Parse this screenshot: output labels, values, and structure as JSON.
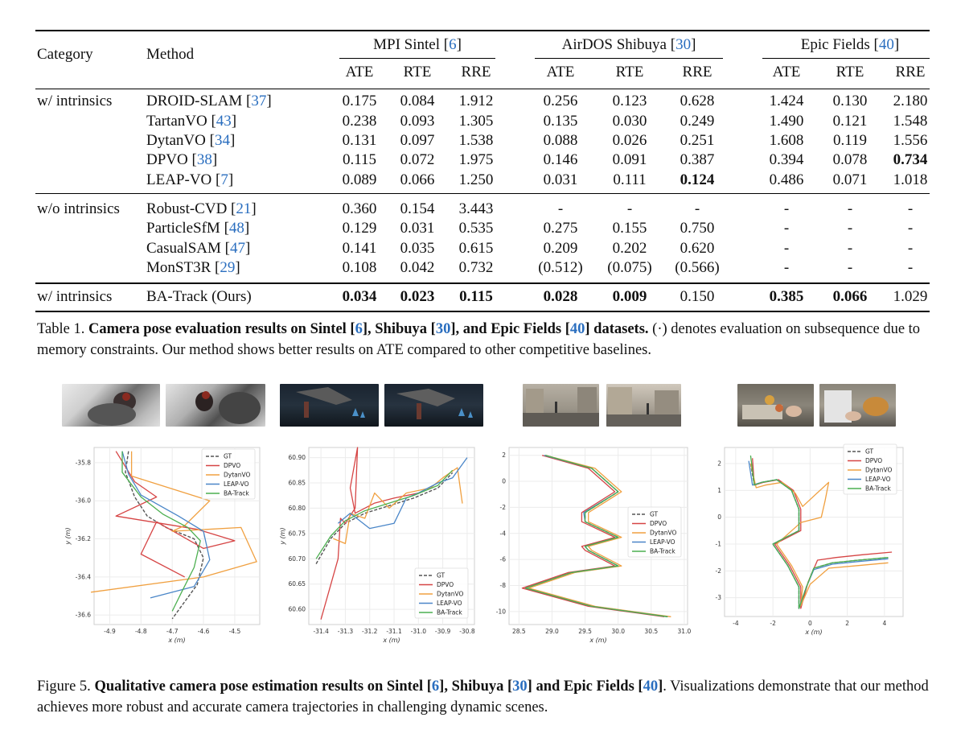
{
  "table": {
    "header": {
      "category": "Category",
      "method": "Method",
      "groups": [
        {
          "name": "MPI Sintel [",
          "ref": "6",
          "end": "]"
        },
        {
          "name": "AirDOS Shibuya [",
          "ref": "30",
          "end": "]"
        },
        {
          "name": "Epic Fields [",
          "ref": "40",
          "end": "]"
        }
      ],
      "metrics": [
        "ATE",
        "RTE",
        "RRE",
        "ATE",
        "RTE",
        "RRE",
        "ATE",
        "RTE",
        "RRE"
      ]
    },
    "rows": [
      {
        "category": "w/ intrinsics",
        "method": "DROID-SLAM [",
        "ref": "37",
        "values": [
          "0.175",
          "0.084",
          "1.912",
          "0.256",
          "0.123",
          "0.628",
          "1.424",
          "0.130",
          "2.180"
        ],
        "bold": []
      },
      {
        "category": "",
        "method": "TartanVO [",
        "ref": "43",
        "values": [
          "0.238",
          "0.093",
          "1.305",
          "0.135",
          "0.030",
          "0.249",
          "1.490",
          "0.121",
          "1.548"
        ],
        "bold": []
      },
      {
        "category": "",
        "method": "DytanVO [",
        "ref": "34",
        "values": [
          "0.131",
          "0.097",
          "1.538",
          "0.088",
          "0.026",
          "0.251",
          "1.608",
          "0.119",
          "1.556"
        ],
        "bold": []
      },
      {
        "category": "",
        "method": "DPVO [",
        "ref": "38",
        "values": [
          "0.115",
          "0.072",
          "1.975",
          "0.146",
          "0.091",
          "0.387",
          "0.394",
          "0.078",
          "0.734"
        ],
        "bold": [
          8
        ]
      },
      {
        "category": "",
        "method": "LEAP-VO [",
        "ref": "7",
        "values": [
          "0.089",
          "0.066",
          "1.250",
          "0.031",
          "0.111",
          "0.124",
          "0.486",
          "0.071",
          "1.018"
        ],
        "bold": [
          5
        ]
      },
      {
        "category": "w/o intrinsics",
        "method": "Robust-CVD [",
        "ref": "21",
        "values": [
          "0.360",
          "0.154",
          "3.443",
          "-",
          "-",
          "-",
          "-",
          "-",
          "-"
        ],
        "bold": []
      },
      {
        "category": "",
        "method": "ParticleSfM  [",
        "ref": "48",
        "values": [
          "0.129",
          "0.031",
          "0.535",
          "0.275",
          "0.155",
          "0.750",
          "-",
          "-",
          "-"
        ],
        "bold": []
      },
      {
        "category": "",
        "method": "CasualSAM  [",
        "ref": "47",
        "values": [
          "0.141",
          "0.035",
          "0.615",
          "0.209",
          "0.202",
          "0.620",
          "-",
          "-",
          "-"
        ],
        "bold": []
      },
      {
        "category": "",
        "method": "MonST3R  [",
        "ref": "29",
        "values": [
          "0.108",
          "0.042",
          "0.732",
          "(0.512)",
          "(0.075)",
          "(0.566)",
          "-",
          "-",
          "-"
        ],
        "bold": []
      },
      {
        "category": "w/ intrinsics",
        "method": "BA-Track (Ours)",
        "ref": "",
        "values": [
          "0.034",
          "0.023",
          "0.115",
          "0.028",
          "0.009",
          "0.150",
          "0.385",
          "0.066",
          "1.029"
        ],
        "bold": [
          0,
          1,
          2,
          3,
          4,
          6,
          7
        ]
      }
    ]
  },
  "table_caption": {
    "label": "Table 1. ",
    "title_a": "Camera pose evaluation results on Sintel [",
    "ref_a": "6",
    "title_b": "], Shibuya [",
    "ref_b": "30",
    "title_c": "], and Epic Fields [",
    "ref_c": "40",
    "title_d": "] datasets.",
    "body": " (·) denotes evaluation on subsequence due to memory constraints. Our method shows better results on ATE compared to other competitive baselines."
  },
  "figure_caption": {
    "label": "Figure 5. ",
    "title_a": "Qualitative camera pose estimation results on Sintel [",
    "ref_a": "6",
    "title_b": "], Shibuya [",
    "ref_b": "30",
    "title_c": "] and Epic Fields [",
    "ref_c": "40",
    "title_d": "]",
    "body": ". Visualizations demonstrate that our method achieves more robust and accurate camera trajectories in challenging dynamic scenes."
  },
  "colors": {
    "GT": "#555555",
    "DPVO": "#d64545",
    "DytanVO": "#f0a040",
    "LEAP-VO": "#4a86c8",
    "BA-Track": "#4caf50",
    "citation": "#2a6ebf"
  },
  "thumbnails": [
    {
      "name": "sintel-ambush-frame-1"
    },
    {
      "name": "sintel-ambush-frame-2"
    },
    {
      "name": "sintel-cave-frame-1"
    },
    {
      "name": "sintel-cave-frame-2"
    },
    {
      "name": "shibuya-street-frame-1"
    },
    {
      "name": "shibuya-street-frame-2"
    },
    {
      "name": "epic-kitchen-frame-1"
    },
    {
      "name": "epic-kitchen-frame-2"
    }
  ],
  "chart_data": [
    {
      "type": "line",
      "xlabel": "x (m)",
      "ylabel": "y (m)",
      "xlim": [
        -4.95,
        -4.42
      ],
      "ylim": [
        -36.65,
        -35.72
      ],
      "xticks": [
        "-4.9",
        "-4.8",
        "-4.7",
        "-4.6",
        "-4.5"
      ],
      "xtick_values": [
        -4.9,
        -4.8,
        -4.7,
        -4.6,
        -4.5
      ],
      "yticks": [
        "-35.8",
        "-36.0",
        "-36.2",
        "-36.4",
        "-36.6"
      ],
      "ytick_values": [
        -35.8,
        -36.0,
        -36.2,
        -36.4,
        -36.6
      ],
      "grid": true,
      "legend": "top-right",
      "series": [
        {
          "name": "GT",
          "dash": true,
          "x": [
            -4.84,
            -4.85,
            -4.82,
            -4.78,
            -4.72,
            -4.63,
            -4.6,
            -4.62,
            -4.66,
            -4.7
          ],
          "y": [
            -35.74,
            -35.85,
            -35.98,
            -36.08,
            -36.14,
            -36.2,
            -36.3,
            -36.44,
            -36.53,
            -36.62
          ]
        },
        {
          "name": "DPVO",
          "x": [
            -4.88,
            -4.82,
            -4.75,
            -4.88,
            -4.62,
            -4.5,
            -4.6,
            -4.75,
            -4.8,
            -4.66
          ],
          "y": [
            -35.74,
            -35.9,
            -35.98,
            -36.08,
            -36.15,
            -36.21,
            -36.25,
            -36.11,
            -36.28,
            -36.4
          ]
        },
        {
          "name": "DytanVO",
          "x": [
            -4.83,
            -4.83,
            -4.58,
            -4.66,
            -4.7,
            -4.48,
            -4.43,
            -4.6,
            -4.96
          ],
          "y": [
            -35.74,
            -35.87,
            -36.0,
            -36.13,
            -36.16,
            -36.14,
            -36.32,
            -36.4,
            -36.48
          ]
        },
        {
          "name": "LEAP-VO",
          "x": [
            -4.86,
            -4.84,
            -4.8,
            -4.68,
            -4.6,
            -4.58,
            -4.63,
            -4.77
          ],
          "y": [
            -35.74,
            -35.86,
            -35.97,
            -36.08,
            -36.16,
            -36.31,
            -36.45,
            -36.51
          ]
        },
        {
          "name": "BA-Track",
          "x": [
            -4.86,
            -4.86,
            -4.8,
            -4.73,
            -4.65,
            -4.61,
            -4.63,
            -4.67,
            -4.7
          ],
          "y": [
            -35.74,
            -35.85,
            -35.98,
            -36.07,
            -36.14,
            -36.21,
            -36.35,
            -36.48,
            -36.58
          ]
        }
      ]
    },
    {
      "type": "line",
      "xlabel": "x (m)",
      "ylabel": "y (m)",
      "xlim": [
        -31.45,
        -30.77
      ],
      "ylim": [
        60.57,
        60.92
      ],
      "xticks": [
        "-31.4",
        "-31.3",
        "-31.2",
        "-31.1",
        "-31.0",
        "-30.9",
        "-30.8"
      ],
      "xtick_values": [
        -31.4,
        -31.3,
        -31.2,
        -31.1,
        -31.0,
        -30.9,
        -30.8
      ],
      "yticks": [
        "60.90",
        "60.85",
        "60.80",
        "60.75",
        "60.70",
        "60.65",
        "60.60"
      ],
      "ytick_values": [
        60.9,
        60.85,
        60.8,
        60.75,
        60.7,
        60.65,
        60.6
      ],
      "grid": true,
      "legend": "bottom-right",
      "series": [
        {
          "name": "GT",
          "dash": true,
          "x": [
            -31.42,
            -31.36,
            -31.3,
            -31.22,
            -31.12,
            -31.02,
            -30.92,
            -30.86
          ],
          "y": [
            60.69,
            60.74,
            60.77,
            60.79,
            60.805,
            60.82,
            60.84,
            60.87
          ]
        },
        {
          "name": "DPVO",
          "x": [
            -31.4,
            -31.33,
            -31.32,
            -31.3,
            -31.26,
            -31.25,
            -31.28,
            -31.26,
            -31.22,
            -31.18,
            -31.1,
            -31.0
          ],
          "y": [
            60.58,
            60.7,
            60.78,
            60.77,
            60.8,
            60.92,
            60.84,
            60.79,
            60.8,
            60.81,
            60.82,
            60.83
          ]
        },
        {
          "name": "DytanVO",
          "x": [
            -31.35,
            -31.3,
            -31.28,
            -31.22,
            -31.18,
            -31.12,
            -31.05,
            -30.95,
            -30.9,
            -30.84,
            -30.82,
            -30.84
          ],
          "y": [
            60.74,
            60.73,
            60.79,
            60.78,
            60.83,
            60.8,
            60.83,
            60.84,
            60.86,
            60.88,
            60.81,
            60.88
          ]
        },
        {
          "name": "LEAP-VO",
          "x": [
            -31.33,
            -31.28,
            -31.2,
            -31.1,
            -31.05,
            -31.0,
            -30.92,
            -30.86,
            -30.8
          ],
          "y": [
            60.77,
            60.79,
            60.76,
            60.77,
            60.82,
            60.83,
            60.85,
            60.86,
            60.9
          ]
        },
        {
          "name": "BA-Track",
          "x": [
            -31.42,
            -31.36,
            -31.3,
            -31.22,
            -31.12,
            -31.02,
            -30.92,
            -30.86
          ],
          "y": [
            60.7,
            60.745,
            60.775,
            60.795,
            60.81,
            60.825,
            60.845,
            60.875
          ]
        }
      ]
    },
    {
      "type": "line",
      "xlabel": "x (m)",
      "ylabel": "y (m)",
      "xlim": [
        28.35,
        31.05
      ],
      "ylim": [
        -11.0,
        2.6
      ],
      "xticks": [
        "28.5",
        "29.0",
        "29.5",
        "30.0",
        "30.5",
        "31.0"
      ],
      "xtick_values": [
        28.5,
        29.0,
        29.5,
        30.0,
        30.5,
        31.0
      ],
      "yticks": [
        "2",
        "0",
        "-2",
        "-4",
        "-6",
        "-8",
        "-10"
      ],
      "ytick_values": [
        2,
        0,
        -2,
        -4,
        -6,
        -8,
        -10
      ],
      "grid": true,
      "legend": "center-right",
      "series": [
        {
          "name": "GT",
          "dash": true,
          "x": [
            28.9,
            29.6,
            30.0,
            29.5,
            29.5,
            30.0,
            29.5,
            29.55,
            30.0,
            29.3,
            28.6,
            29.6,
            30.75
          ],
          "y": [
            2.0,
            1.0,
            -0.8,
            -2.4,
            -3.1,
            -4.3,
            -5.0,
            -5.3,
            -6.5,
            -7.0,
            -8.2,
            -9.6,
            -10.4
          ]
        },
        {
          "name": "DPVO",
          "x": [
            28.85,
            29.55,
            29.95,
            29.45,
            29.45,
            29.95,
            29.45,
            29.5,
            29.95,
            29.25,
            28.55,
            29.55,
            30.7
          ],
          "y": [
            2.0,
            1.0,
            -0.8,
            -2.4,
            -3.1,
            -4.3,
            -5.0,
            -5.3,
            -6.5,
            -7.0,
            -8.2,
            -9.6,
            -10.4
          ]
        },
        {
          "name": "DytanVO",
          "x": [
            28.9,
            29.65,
            30.05,
            29.55,
            29.55,
            30.05,
            29.55,
            29.6,
            30.05,
            29.35,
            28.65,
            29.65,
            30.8
          ],
          "y": [
            2.0,
            1.0,
            -0.8,
            -2.4,
            -3.1,
            -4.3,
            -5.0,
            -5.3,
            -6.5,
            -7.0,
            -8.2,
            -9.6,
            -10.4
          ]
        },
        {
          "name": "LEAP-VO",
          "x": [
            28.88,
            29.6,
            30.0,
            29.48,
            29.5,
            30.0,
            29.5,
            29.55,
            30.0,
            29.3,
            28.6,
            29.6,
            30.75
          ],
          "y": [
            2.0,
            1.0,
            -0.8,
            -2.4,
            -3.1,
            -4.3,
            -5.0,
            -5.3,
            -6.5,
            -7.0,
            -8.2,
            -9.6,
            -10.4
          ]
        },
        {
          "name": "BA-Track",
          "x": [
            28.9,
            29.6,
            30.0,
            29.5,
            29.5,
            30.0,
            29.5,
            29.55,
            30.0,
            29.3,
            28.6,
            29.6,
            30.75
          ],
          "y": [
            2.0,
            1.0,
            -0.8,
            -2.4,
            -3.1,
            -4.3,
            -5.0,
            -5.3,
            -6.5,
            -7.0,
            -8.2,
            -9.6,
            -10.4
          ]
        }
      ]
    },
    {
      "type": "line",
      "xlabel": "x (m)",
      "ylabel": "y (m)",
      "xlim": [
        -4.6,
        5.0
      ],
      "ylim": [
        -3.7,
        2.6
      ],
      "xticks": [
        "-4",
        "-2",
        "0",
        "2",
        "4"
      ],
      "xtick_values": [
        -4,
        -2,
        0,
        2,
        4
      ],
      "yticks": [
        "2",
        "1",
        "0",
        "-1",
        "-2",
        "-3"
      ],
      "ytick_values": [
        2,
        1,
        0,
        -1,
        -2,
        -3
      ],
      "grid": true,
      "legend": "top-right",
      "series": [
        {
          "name": "GT",
          "dash": true,
          "x": [
            -3.2,
            -3.0,
            -2.6,
            -1.8,
            -1.0,
            -0.6,
            -0.6,
            -2.0,
            -1.2,
            -0.6,
            -0.6,
            -0.2,
            0.2,
            1.2,
            2.6,
            4.2
          ],
          "y": [
            2.0,
            1.2,
            1.3,
            1.4,
            1.0,
            0.3,
            -0.5,
            -1.0,
            -1.8,
            -2.6,
            -3.4,
            -2.6,
            -1.9,
            -1.7,
            -1.6,
            -1.5
          ]
        },
        {
          "name": "DPVO",
          "x": [
            -3.1,
            -3.0,
            -2.5,
            -1.7,
            -0.9,
            -0.5,
            -0.5,
            -1.9,
            -1.1,
            -0.5,
            -0.5,
            -0.1,
            0.4,
            1.4,
            2.8,
            4.4
          ],
          "y": [
            2.2,
            1.2,
            1.3,
            1.4,
            1.0,
            0.3,
            -0.5,
            -1.0,
            -1.8,
            -2.6,
            -3.4,
            -2.4,
            -1.6,
            -1.5,
            -1.4,
            -1.3
          ]
        },
        {
          "name": "DytanVO",
          "x": [
            -3.2,
            -2.9,
            -2.4,
            -1.5,
            -0.8,
            -0.4,
            1.0,
            0.8,
            0.6,
            -0.5,
            -1.8,
            -1.0,
            -0.4,
            -0.5,
            0.0,
            1.0,
            2.6,
            4.2
          ],
          "y": [
            2.0,
            1.1,
            1.2,
            1.3,
            0.9,
            0.4,
            1.3,
            0.6,
            0.0,
            -0.2,
            -1.0,
            -1.8,
            -2.6,
            -3.3,
            -2.5,
            -1.9,
            -1.8,
            -1.7
          ]
        },
        {
          "name": "LEAP-VO",
          "x": [
            -3.3,
            -3.1,
            -2.6,
            -1.8,
            -1.0,
            -0.6,
            -0.6,
            -2.0,
            -1.2,
            -0.6,
            -0.6,
            -0.2,
            0.2,
            1.2,
            2.6,
            4.2
          ],
          "y": [
            2.1,
            1.2,
            1.3,
            1.4,
            1.0,
            0.3,
            -0.5,
            -1.0,
            -1.8,
            -2.6,
            -3.4,
            -2.6,
            -1.95,
            -1.75,
            -1.65,
            -1.55
          ]
        },
        {
          "name": "BA-Track",
          "x": [
            -3.2,
            -3.0,
            -2.6,
            -1.8,
            -1.0,
            -0.6,
            -0.6,
            -2.0,
            -1.2,
            -0.6,
            -0.6,
            -0.2,
            0.2,
            1.2,
            2.6,
            4.2
          ],
          "y": [
            2.3,
            1.2,
            1.3,
            1.4,
            1.0,
            0.3,
            -0.5,
            -1.0,
            -1.8,
            -2.6,
            -3.4,
            -2.6,
            -1.9,
            -1.7,
            -1.6,
            -1.5
          ]
        }
      ]
    }
  ]
}
